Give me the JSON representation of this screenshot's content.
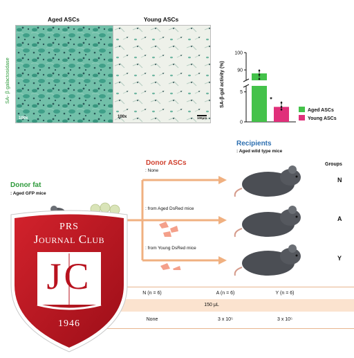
{
  "panel_a": {
    "y_label": "SA- β galactosidase",
    "aged_title": "Aged ASCs",
    "young_title": "Young ASCs",
    "aged_mag": "100x",
    "young_mag": "100x",
    "scale_bar": "100μm"
  },
  "chart_data": {
    "type": "bar",
    "categories": [
      "Aged ASCs",
      "Young ASCs"
    ],
    "values": [
      88,
      2.5
    ],
    "ylabel": "SA-β-gal activity (%)",
    "y_ticks_upper": [
      "100",
      "90"
    ],
    "y_ticks_lower": [
      "5",
      "0"
    ],
    "ylim_lower": [
      0,
      6
    ],
    "ylim_upper": [
      84,
      100
    ],
    "axis_break": true,
    "significance": "*",
    "colors": [
      "#44c24a",
      "#e0307a"
    ],
    "legend": [
      "Aged ASCs",
      "Young ASCs"
    ],
    "legend_position": "right"
  },
  "panel_b": {
    "donor_fat_title": "Donor fat",
    "donor_fat_sub": ": Aged GFP mice",
    "donor_ascs_title": "Donor ASCs",
    "arrow_labels": [
      ": None",
      ": from Aged DsRed mice",
      ": from Young DsRed mice"
    ],
    "recipients_title": "Recipients",
    "recipients_sub": ": Aged wild type mice",
    "groups_title": "Groups",
    "groups": [
      "N",
      "A",
      "Y"
    ]
  },
  "table": {
    "headers": [
      "N (n = 6)",
      "A (n = 6)",
      "Y (n = 6)"
    ],
    "volume": "150 μL",
    "cells": [
      "None",
      "3 x 10⁵",
      "3 x 10⁵"
    ]
  },
  "badge": {
    "line1": "PRS",
    "line2": "Journal Club",
    "monogram": "JC",
    "year": "1946"
  },
  "colors": {
    "green": "#2d9a3a",
    "red": "#d0402e",
    "blue": "#2d6fb0",
    "arrow": "#f0b080",
    "table_band": "#fbe3cf",
    "badge_red": "#b8121e"
  }
}
